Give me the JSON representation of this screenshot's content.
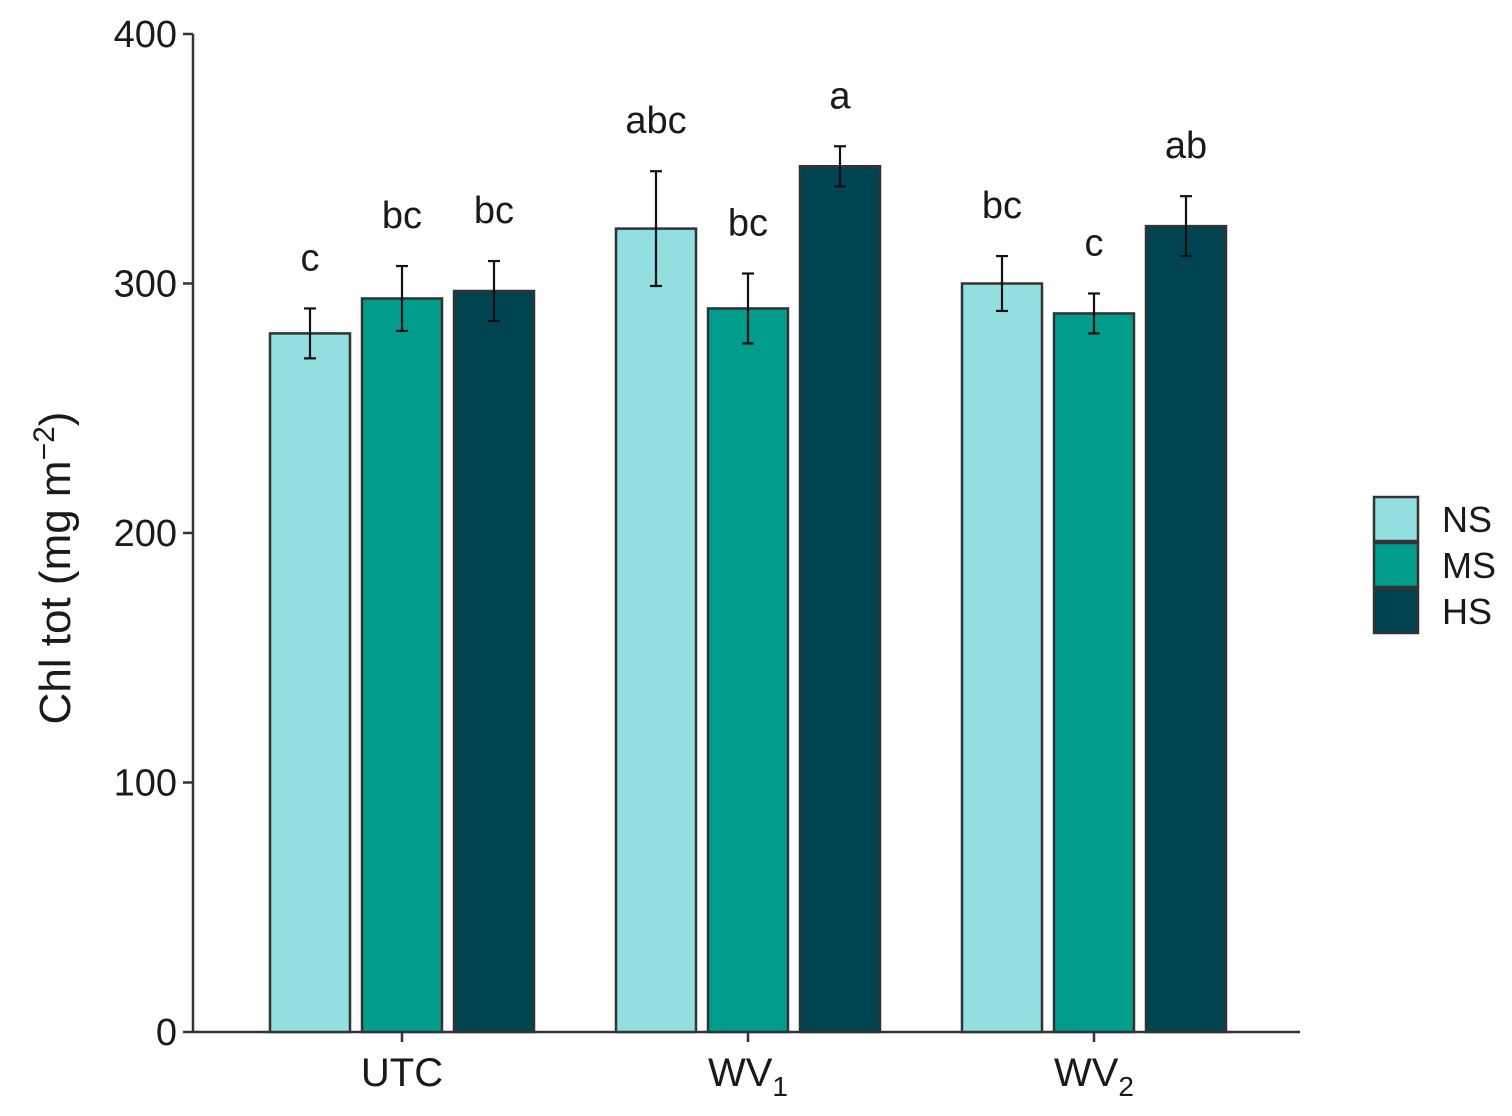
{
  "chart_data": {
    "type": "bar",
    "ylabel": {
      "main": "Chl tot (mg m",
      "superscript": "−2",
      "close": ")"
    },
    "ylim": [
      0,
      400
    ],
    "yticks": [
      "0",
      "100",
      "200",
      "300",
      "400"
    ],
    "grid": false,
    "legend_position": "right",
    "categories": [
      {
        "base": "UTC",
        "sub": ""
      },
      {
        "base": "WV",
        "sub": "1"
      },
      {
        "base": "WV",
        "sub": "2"
      }
    ],
    "series": [
      {
        "name": "NS",
        "color": "#93dede",
        "values": [
          280,
          322,
          300
        ],
        "errors": [
          10,
          23,
          11
        ],
        "letters": [
          "c",
          "abc",
          "bc"
        ]
      },
      {
        "name": "MS",
        "color": "#009c8c",
        "values": [
          294,
          290,
          288
        ],
        "errors": [
          13,
          14,
          8
        ],
        "letters": [
          "bc",
          "bc",
          "c"
        ]
      },
      {
        "name": "HS",
        "color": "#004451",
        "values": [
          297,
          347,
          323
        ],
        "errors": [
          12,
          8,
          12
        ],
        "letters": [
          "bc",
          "a",
          "ab"
        ]
      }
    ]
  }
}
